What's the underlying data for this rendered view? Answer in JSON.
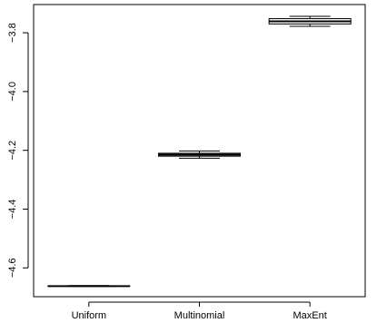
{
  "chart_data": {
    "type": "boxplot",
    "title": "",
    "xlabel": "",
    "ylabel": "",
    "categories": [
      "Uniform",
      "Multinomial",
      "MaxEnt"
    ],
    "boxes": [
      {
        "category": "Uniform",
        "min": -4.663,
        "q1": -4.662,
        "median": -4.662,
        "q3": -4.661,
        "max": -4.66
      },
      {
        "category": "Multinomial",
        "min": -4.227,
        "q1": -4.22,
        "median": -4.215,
        "q3": -4.21,
        "max": -4.202
      },
      {
        "category": "MaxEnt",
        "min": -3.778,
        "q1": -3.77,
        "median": -3.761,
        "q3": -3.752,
        "max": -3.744
      }
    ],
    "yticks": [
      -4.6,
      -4.4,
      -4.2,
      -4.0,
      -3.8
    ],
    "ytick_labels": [
      "−4.6",
      "−4.4",
      "−4.2",
      "−4.0",
      "−3.8"
    ],
    "ylim": [
      -4.698,
      -3.704
    ],
    "grid": false,
    "legend": "none",
    "colors": {
      "line": "#000000",
      "box_fill": "#ffffff",
      "background": "#ffffff"
    }
  }
}
